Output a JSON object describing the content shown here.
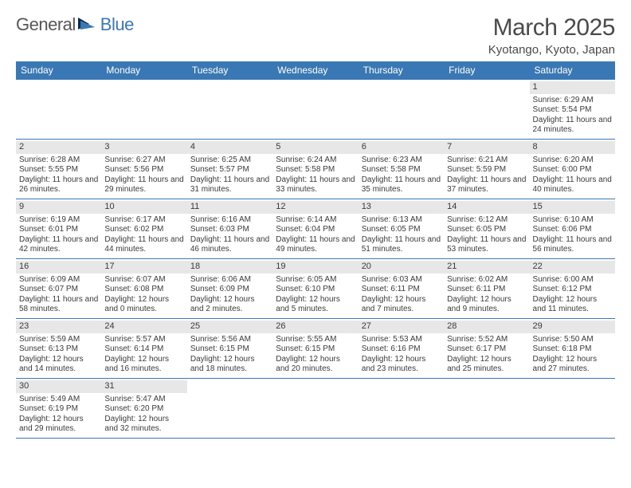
{
  "logo": {
    "part1": "General",
    "part2": "Blue"
  },
  "title": "March 2025",
  "location": "Kyotango, Kyoto, Japan",
  "colors": {
    "header_bg": "#3a78b5",
    "header_fg": "#ffffff",
    "daynum_bg": "#e7e7e7",
    "text": "#3a3a3a",
    "rule": "#3a78b5"
  },
  "dayNames": [
    "Sunday",
    "Monday",
    "Tuesday",
    "Wednesday",
    "Thursday",
    "Friday",
    "Saturday"
  ],
  "weeks": [
    [
      null,
      null,
      null,
      null,
      null,
      null,
      {
        "n": "1",
        "sr": "Sunrise: 6:29 AM",
        "ss": "Sunset: 5:54 PM",
        "dl": "Daylight: 11 hours and 24 minutes."
      }
    ],
    [
      {
        "n": "2",
        "sr": "Sunrise: 6:28 AM",
        "ss": "Sunset: 5:55 PM",
        "dl": "Daylight: 11 hours and 26 minutes."
      },
      {
        "n": "3",
        "sr": "Sunrise: 6:27 AM",
        "ss": "Sunset: 5:56 PM",
        "dl": "Daylight: 11 hours and 29 minutes."
      },
      {
        "n": "4",
        "sr": "Sunrise: 6:25 AM",
        "ss": "Sunset: 5:57 PM",
        "dl": "Daylight: 11 hours and 31 minutes."
      },
      {
        "n": "5",
        "sr": "Sunrise: 6:24 AM",
        "ss": "Sunset: 5:58 PM",
        "dl": "Daylight: 11 hours and 33 minutes."
      },
      {
        "n": "6",
        "sr": "Sunrise: 6:23 AM",
        "ss": "Sunset: 5:58 PM",
        "dl": "Daylight: 11 hours and 35 minutes."
      },
      {
        "n": "7",
        "sr": "Sunrise: 6:21 AM",
        "ss": "Sunset: 5:59 PM",
        "dl": "Daylight: 11 hours and 37 minutes."
      },
      {
        "n": "8",
        "sr": "Sunrise: 6:20 AM",
        "ss": "Sunset: 6:00 PM",
        "dl": "Daylight: 11 hours and 40 minutes."
      }
    ],
    [
      {
        "n": "9",
        "sr": "Sunrise: 6:19 AM",
        "ss": "Sunset: 6:01 PM",
        "dl": "Daylight: 11 hours and 42 minutes."
      },
      {
        "n": "10",
        "sr": "Sunrise: 6:17 AM",
        "ss": "Sunset: 6:02 PM",
        "dl": "Daylight: 11 hours and 44 minutes."
      },
      {
        "n": "11",
        "sr": "Sunrise: 6:16 AM",
        "ss": "Sunset: 6:03 PM",
        "dl": "Daylight: 11 hours and 46 minutes."
      },
      {
        "n": "12",
        "sr": "Sunrise: 6:14 AM",
        "ss": "Sunset: 6:04 PM",
        "dl": "Daylight: 11 hours and 49 minutes."
      },
      {
        "n": "13",
        "sr": "Sunrise: 6:13 AM",
        "ss": "Sunset: 6:05 PM",
        "dl": "Daylight: 11 hours and 51 minutes."
      },
      {
        "n": "14",
        "sr": "Sunrise: 6:12 AM",
        "ss": "Sunset: 6:05 PM",
        "dl": "Daylight: 11 hours and 53 minutes."
      },
      {
        "n": "15",
        "sr": "Sunrise: 6:10 AM",
        "ss": "Sunset: 6:06 PM",
        "dl": "Daylight: 11 hours and 56 minutes."
      }
    ],
    [
      {
        "n": "16",
        "sr": "Sunrise: 6:09 AM",
        "ss": "Sunset: 6:07 PM",
        "dl": "Daylight: 11 hours and 58 minutes."
      },
      {
        "n": "17",
        "sr": "Sunrise: 6:07 AM",
        "ss": "Sunset: 6:08 PM",
        "dl": "Daylight: 12 hours and 0 minutes."
      },
      {
        "n": "18",
        "sr": "Sunrise: 6:06 AM",
        "ss": "Sunset: 6:09 PM",
        "dl": "Daylight: 12 hours and 2 minutes."
      },
      {
        "n": "19",
        "sr": "Sunrise: 6:05 AM",
        "ss": "Sunset: 6:10 PM",
        "dl": "Daylight: 12 hours and 5 minutes."
      },
      {
        "n": "20",
        "sr": "Sunrise: 6:03 AM",
        "ss": "Sunset: 6:11 PM",
        "dl": "Daylight: 12 hours and 7 minutes."
      },
      {
        "n": "21",
        "sr": "Sunrise: 6:02 AM",
        "ss": "Sunset: 6:11 PM",
        "dl": "Daylight: 12 hours and 9 minutes."
      },
      {
        "n": "22",
        "sr": "Sunrise: 6:00 AM",
        "ss": "Sunset: 6:12 PM",
        "dl": "Daylight: 12 hours and 11 minutes."
      }
    ],
    [
      {
        "n": "23",
        "sr": "Sunrise: 5:59 AM",
        "ss": "Sunset: 6:13 PM",
        "dl": "Daylight: 12 hours and 14 minutes."
      },
      {
        "n": "24",
        "sr": "Sunrise: 5:57 AM",
        "ss": "Sunset: 6:14 PM",
        "dl": "Daylight: 12 hours and 16 minutes."
      },
      {
        "n": "25",
        "sr": "Sunrise: 5:56 AM",
        "ss": "Sunset: 6:15 PM",
        "dl": "Daylight: 12 hours and 18 minutes."
      },
      {
        "n": "26",
        "sr": "Sunrise: 5:55 AM",
        "ss": "Sunset: 6:15 PM",
        "dl": "Daylight: 12 hours and 20 minutes."
      },
      {
        "n": "27",
        "sr": "Sunrise: 5:53 AM",
        "ss": "Sunset: 6:16 PM",
        "dl": "Daylight: 12 hours and 23 minutes."
      },
      {
        "n": "28",
        "sr": "Sunrise: 5:52 AM",
        "ss": "Sunset: 6:17 PM",
        "dl": "Daylight: 12 hours and 25 minutes."
      },
      {
        "n": "29",
        "sr": "Sunrise: 5:50 AM",
        "ss": "Sunset: 6:18 PM",
        "dl": "Daylight: 12 hours and 27 minutes."
      }
    ],
    [
      {
        "n": "30",
        "sr": "Sunrise: 5:49 AM",
        "ss": "Sunset: 6:19 PM",
        "dl": "Daylight: 12 hours and 29 minutes."
      },
      {
        "n": "31",
        "sr": "Sunrise: 5:47 AM",
        "ss": "Sunset: 6:20 PM",
        "dl": "Daylight: 12 hours and 32 minutes."
      },
      null,
      null,
      null,
      null,
      null
    ]
  ]
}
